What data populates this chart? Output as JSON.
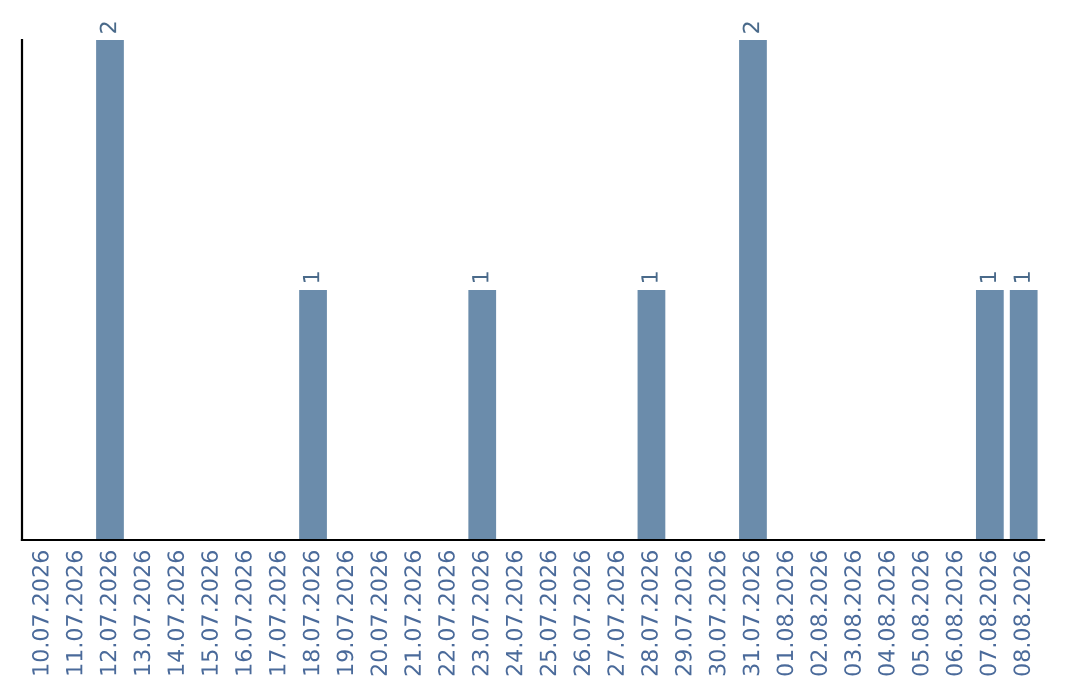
{
  "chart_data": {
    "type": "bar",
    "categories": [
      "10.07.2026",
      "11.07.2026",
      "12.07.2026",
      "13.07.2026",
      "14.07.2026",
      "15.07.2026",
      "16.07.2026",
      "17.07.2026",
      "18.07.2026",
      "19.07.2026",
      "20.07.2026",
      "21.07.2026",
      "22.07.2026",
      "23.07.2026",
      "24.07.2026",
      "25.07.2026",
      "26.07.2026",
      "27.07.2026",
      "28.07.2026",
      "29.07.2026",
      "30.07.2026",
      "31.07.2026",
      "01.08.2026",
      "02.08.2026",
      "03.08.2026",
      "04.08.2026",
      "05.08.2026",
      "06.08.2026",
      "07.08.2026",
      "08.08.2026"
    ],
    "values": [
      0,
      0,
      2,
      0,
      0,
      0,
      0,
      0,
      1,
      0,
      0,
      0,
      0,
      1,
      0,
      0,
      0,
      0,
      1,
      0,
      0,
      2,
      0,
      0,
      0,
      0,
      0,
      0,
      1,
      1
    ],
    "value_labels": [
      null,
      null,
      "2",
      null,
      null,
      null,
      null,
      null,
      "1",
      null,
      null,
      null,
      null,
      "1",
      null,
      null,
      null,
      null,
      "1",
      null,
      null,
      "2",
      null,
      null,
      null,
      null,
      null,
      null,
      "1",
      "1"
    ],
    "color": "#6b8cab",
    "ylim": [
      0,
      2
    ],
    "tick_labels": "x",
    "grid": false,
    "legend": false
  }
}
